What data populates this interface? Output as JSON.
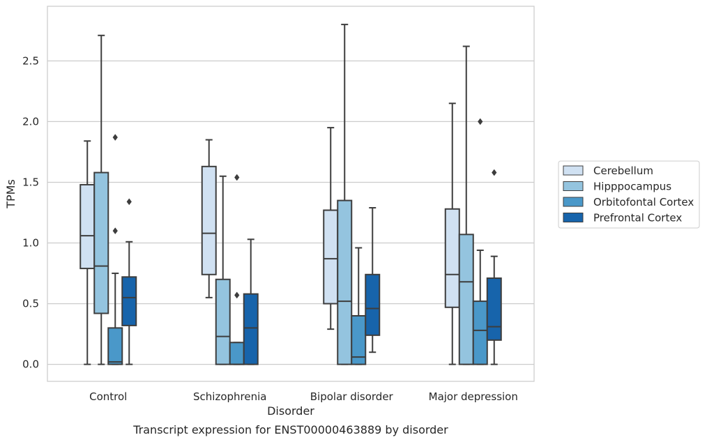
{
  "chart_data": {
    "type": "box",
    "caption": "Transcript expression for ENST00000463889 by disorder",
    "xlabel": "Disorder",
    "ylabel": "TPMs",
    "ylim": [
      -0.14,
      2.95
    ],
    "yticks": [
      0.0,
      0.5,
      1.0,
      1.5,
      2.0,
      2.5
    ],
    "ytick_labels": [
      "0.0",
      "0.5",
      "1.0",
      "1.5",
      "2.0",
      "2.5"
    ],
    "categories": [
      "Control",
      "Schizophrenia",
      "Bipolar disorder",
      "Major depression"
    ],
    "grid": "horizontal",
    "legend_position": "right",
    "series": [
      {
        "name": "Cerebellum",
        "color": "#d0e1f2",
        "boxes": [
          {
            "whisker_low": 0.0,
            "q1": 0.79,
            "median": 1.06,
            "q3": 1.48,
            "whisker_high": 1.84,
            "outliers": []
          },
          {
            "whisker_low": 0.55,
            "q1": 0.74,
            "median": 1.08,
            "q3": 1.63,
            "whisker_high": 1.85,
            "outliers": []
          },
          {
            "whisker_low": 0.29,
            "q1": 0.5,
            "median": 0.87,
            "q3": 1.27,
            "whisker_high": 1.95,
            "outliers": []
          },
          {
            "whisker_low": 0.0,
            "q1": 0.47,
            "median": 0.74,
            "q3": 1.28,
            "whisker_high": 2.15,
            "outliers": []
          }
        ]
      },
      {
        "name": "Hipppocampus",
        "color": "#94c4df",
        "boxes": [
          {
            "whisker_low": 0.0,
            "q1": 0.42,
            "median": 0.81,
            "q3": 1.58,
            "whisker_high": 2.71,
            "outliers": []
          },
          {
            "whisker_low": 0.0,
            "q1": 0.0,
            "median": 0.23,
            "q3": 0.7,
            "whisker_high": 1.55,
            "outliers": []
          },
          {
            "whisker_low": 0.0,
            "q1": 0.0,
            "median": 0.52,
            "q3": 1.35,
            "whisker_high": 2.8,
            "outliers": []
          },
          {
            "whisker_low": 0.0,
            "q1": 0.0,
            "median": 0.68,
            "q3": 1.07,
            "whisker_high": 2.62,
            "outliers": []
          }
        ]
      },
      {
        "name": "Orbitofontal Cortex",
        "color": "#4a98c9",
        "boxes": [
          {
            "whisker_low": 0.0,
            "q1": 0.0,
            "median": 0.02,
            "q3": 0.3,
            "whisker_high": 0.75,
            "outliers": [
              1.1,
              1.87
            ]
          },
          {
            "whisker_low": 0.0,
            "q1": 0.0,
            "median": 0.0,
            "q3": 0.18,
            "whisker_high": 0.18,
            "outliers": [
              0.57,
              1.54
            ]
          },
          {
            "whisker_low": 0.0,
            "q1": 0.0,
            "median": 0.06,
            "q3": 0.4,
            "whisker_high": 0.96,
            "outliers": []
          },
          {
            "whisker_low": 0.0,
            "q1": 0.0,
            "median": 0.28,
            "q3": 0.52,
            "whisker_high": 0.94,
            "outliers": [
              2.0
            ]
          }
        ]
      },
      {
        "name": "Prefrontal Cortex",
        "color": "#1764ab",
        "boxes": [
          {
            "whisker_low": 0.0,
            "q1": 0.32,
            "median": 0.55,
            "q3": 0.72,
            "whisker_high": 1.01,
            "outliers": [
              1.34
            ]
          },
          {
            "whisker_low": 0.0,
            "q1": 0.0,
            "median": 0.3,
            "q3": 0.58,
            "whisker_high": 1.03,
            "outliers": []
          },
          {
            "whisker_low": 0.1,
            "q1": 0.24,
            "median": 0.46,
            "q3": 0.74,
            "whisker_high": 1.29,
            "outliers": []
          },
          {
            "whisker_low": 0.0,
            "q1": 0.2,
            "median": 0.31,
            "q3": 0.71,
            "whisker_high": 0.89,
            "outliers": [
              1.58
            ]
          }
        ]
      }
    ]
  }
}
